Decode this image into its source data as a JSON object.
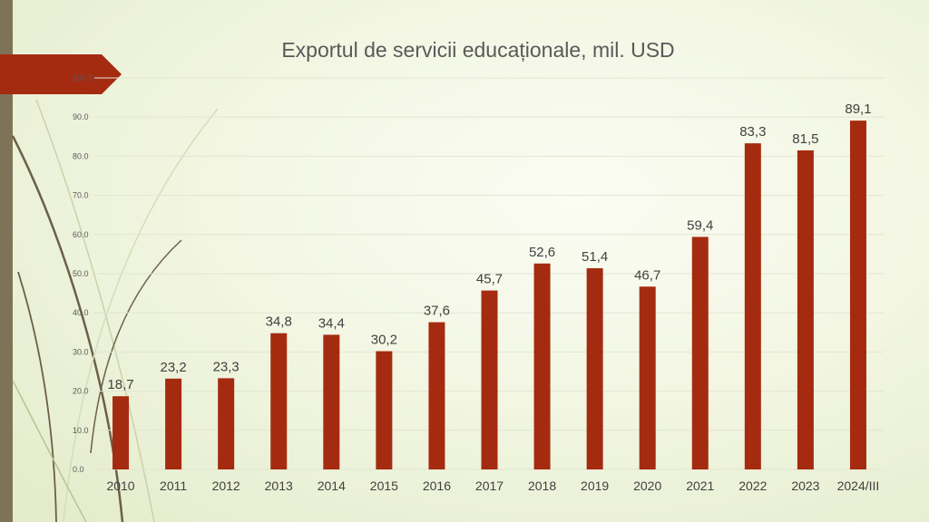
{
  "chart_data": {
    "type": "bar",
    "title": "Exportul de servicii educaționale, mil. USD",
    "categories": [
      "2010",
      "2011",
      "2012",
      "2013",
      "2014",
      "2015",
      "2016",
      "2017",
      "2018",
      "2019",
      "2020",
      "2021",
      "2022",
      "2023",
      "2024/III"
    ],
    "values": [
      18.7,
      23.2,
      23.3,
      34.8,
      34.4,
      30.2,
      37.6,
      45.7,
      52.6,
      51.4,
      46.7,
      59.4,
      83.3,
      81.5,
      89.1
    ],
    "value_labels": [
      "18,7",
      "23,2",
      "23,3",
      "34,8",
      "34,4",
      "30,2",
      "37,6",
      "45,7",
      "52,6",
      "51,4",
      "46,7",
      "59,4",
      "83,3",
      "81,5",
      "89,1"
    ],
    "yticks": [
      "0.0",
      "10.0",
      "20.0",
      "30.0",
      "40.0",
      "50.0",
      "60.0",
      "70.0",
      "80.0",
      "90.0",
      "100.0"
    ],
    "ylim": [
      0,
      100
    ],
    "grid": true,
    "legend": "none",
    "bar_color": "#a52b10"
  },
  "colors": {
    "accent_bar": "#7e7357",
    "accent_tab": "#a52b10"
  }
}
